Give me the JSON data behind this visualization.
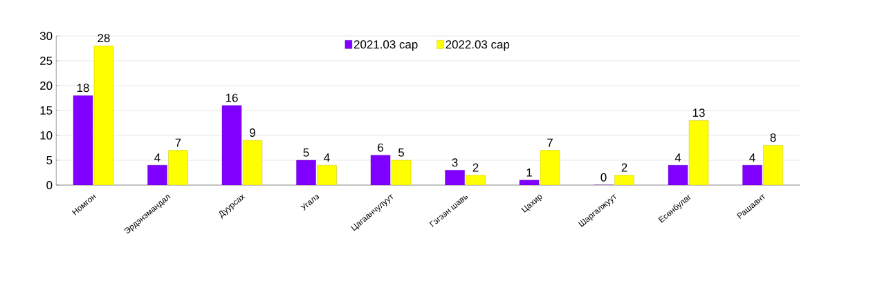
{
  "chart_data": {
    "type": "bar",
    "categories": [
      "Номгон",
      "Эрдэнэмандал",
      "Дуурсах",
      "Угалз",
      "Цагаанчулуут",
      "Гэгээн шавь",
      "Цахир",
      "Шаргалжуут",
      "Есөнбулаг",
      "Рашаант"
    ],
    "series": [
      {
        "name": "2021.03 сар",
        "color": "#8000ff",
        "values": [
          18,
          4,
          16,
          5,
          6,
          3,
          1,
          0,
          4,
          4
        ]
      },
      {
        "name": "2022.03 сар",
        "color": "#ffff00",
        "values": [
          28,
          7,
          9,
          4,
          5,
          2,
          7,
          2,
          13,
          8
        ]
      }
    ],
    "ylim": [
      0,
      30
    ],
    "yticks": [
      0,
      5,
      10,
      15,
      20,
      25,
      30
    ],
    "grid": "y",
    "legend": "top",
    "data_labels": true
  }
}
